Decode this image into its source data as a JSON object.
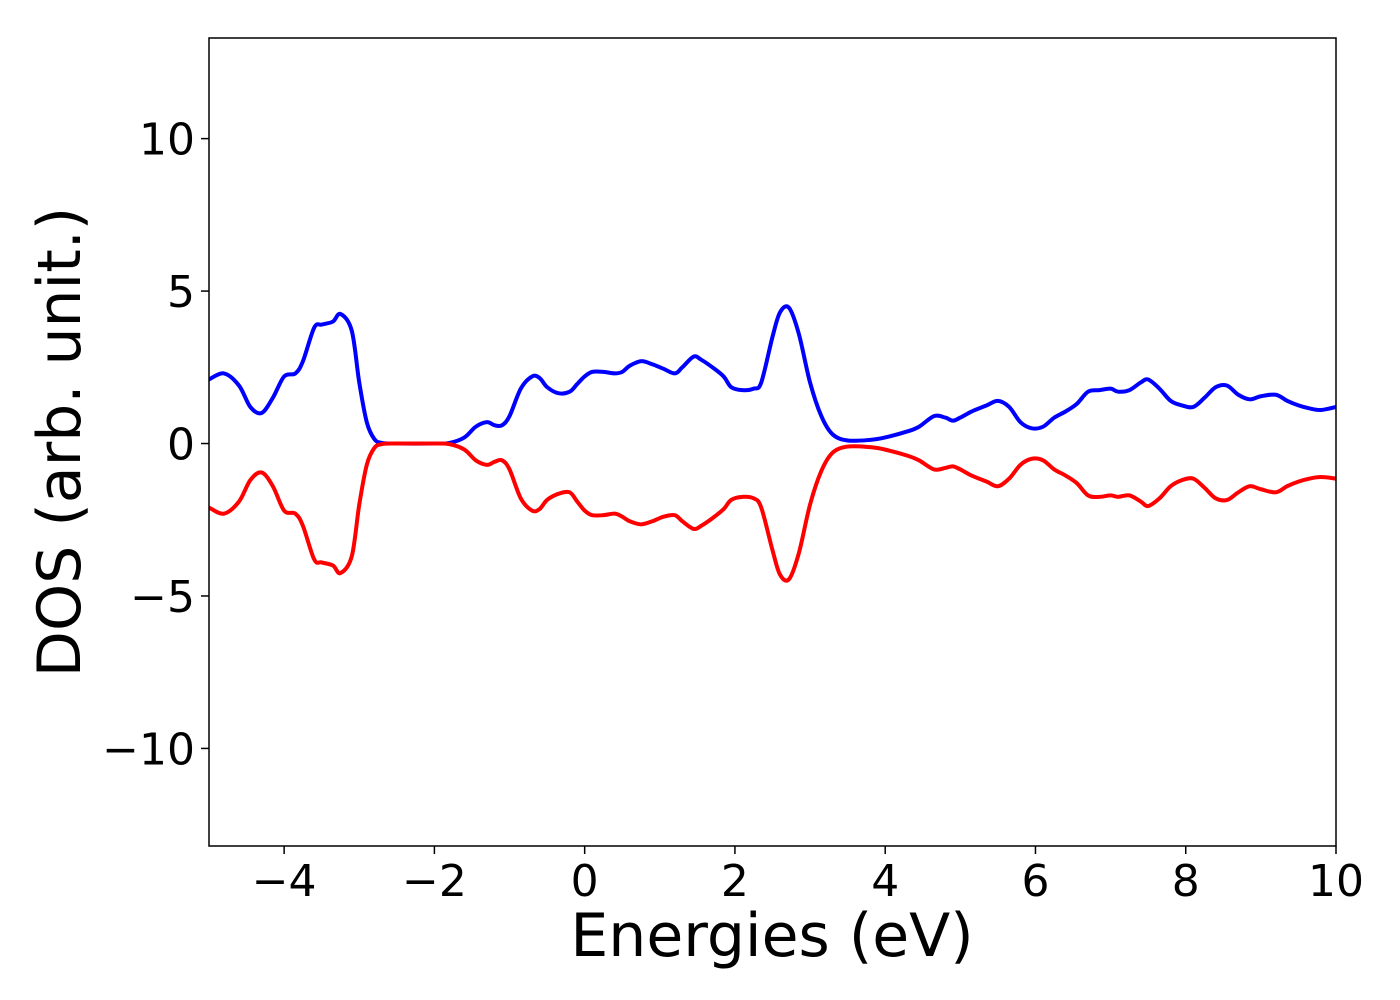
{
  "chart_data": {
    "type": "line",
    "title": "",
    "xlabel": "Energies (eV)",
    "ylabel": "DOS (arb. unit.)",
    "xlim": [
      -5,
      10
    ],
    "ylim": [
      -13.2,
      13.3
    ],
    "grid": false,
    "legend": "none",
    "xticks": [
      -4,
      -2,
      0,
      2,
      4,
      6,
      8,
      10
    ],
    "yticks": [
      -10,
      -5,
      0,
      5,
      10
    ],
    "xtick_labels": [
      "−4",
      "−2",
      "0",
      "2",
      "4",
      "6",
      "8",
      "10"
    ],
    "ytick_labels": [
      "−10",
      "−5",
      "0",
      "5",
      "10"
    ],
    "series": [
      {
        "color": "#0000ff",
        "x": [
          -5.0,
          -4.8,
          -4.6,
          -4.45,
          -4.3,
          -4.15,
          -4.0,
          -3.85,
          -3.75,
          -3.6,
          -3.5,
          -3.35,
          -3.25,
          -3.1,
          -3.0,
          -2.9,
          -2.8,
          -2.7,
          -2.5,
          -2.0,
          -1.8,
          -1.6,
          -1.45,
          -1.3,
          -1.2,
          -1.1,
          -1.0,
          -0.85,
          -0.7,
          -0.6,
          -0.5,
          -0.35,
          -0.2,
          -0.1,
          0.0,
          0.1,
          0.25,
          0.4,
          0.5,
          0.6,
          0.75,
          0.9,
          1.05,
          1.2,
          1.3,
          1.45,
          1.55,
          1.7,
          1.85,
          1.95,
          2.1,
          2.25,
          2.35,
          2.5,
          2.6,
          2.72,
          2.85,
          3.0,
          3.15,
          3.3,
          3.5,
          3.8,
          4.0,
          4.3,
          4.45,
          4.65,
          4.8,
          4.9,
          5.0,
          5.15,
          5.35,
          5.5,
          5.65,
          5.8,
          5.95,
          6.1,
          6.25,
          6.4,
          6.55,
          6.7,
          6.85,
          7.0,
          7.1,
          7.25,
          7.4,
          7.5,
          7.65,
          7.8,
          7.95,
          8.1,
          8.25,
          8.4,
          8.55,
          8.7,
          8.85,
          9.0,
          9.2,
          9.35,
          9.5,
          9.65,
          9.8,
          10.0
        ],
        "y": [
          2.1,
          2.3,
          1.9,
          1.2,
          1.0,
          1.5,
          2.2,
          2.3,
          2.7,
          3.8,
          3.9,
          4.0,
          4.25,
          3.7,
          2.0,
          0.7,
          0.15,
          0.02,
          0.0,
          0.0,
          0.02,
          0.2,
          0.55,
          0.7,
          0.6,
          0.6,
          0.9,
          1.8,
          2.2,
          2.15,
          1.85,
          1.65,
          1.7,
          1.95,
          2.2,
          2.35,
          2.35,
          2.3,
          2.35,
          2.55,
          2.7,
          2.6,
          2.45,
          2.3,
          2.5,
          2.85,
          2.75,
          2.5,
          2.2,
          1.85,
          1.75,
          1.8,
          2.0,
          3.5,
          4.3,
          4.45,
          3.6,
          2.0,
          0.9,
          0.3,
          0.1,
          0.12,
          0.2,
          0.4,
          0.55,
          0.9,
          0.85,
          0.75,
          0.85,
          1.05,
          1.25,
          1.4,
          1.2,
          0.7,
          0.5,
          0.55,
          0.85,
          1.05,
          1.3,
          1.7,
          1.75,
          1.8,
          1.7,
          1.75,
          2.0,
          2.1,
          1.8,
          1.4,
          1.25,
          1.2,
          1.5,
          1.85,
          1.9,
          1.6,
          1.45,
          1.55,
          1.6,
          1.4,
          1.25,
          1.15,
          1.1,
          1.2
        ]
      },
      {
        "color": "#ff0000",
        "x": [
          -5.0,
          -4.8,
          -4.6,
          -4.45,
          -4.3,
          -4.15,
          -4.0,
          -3.85,
          -3.75,
          -3.6,
          -3.5,
          -3.35,
          -3.25,
          -3.1,
          -3.0,
          -2.9,
          -2.8,
          -2.7,
          -2.5,
          -2.0,
          -1.8,
          -1.6,
          -1.45,
          -1.3,
          -1.2,
          -1.1,
          -1.0,
          -0.85,
          -0.7,
          -0.6,
          -0.5,
          -0.35,
          -0.2,
          -0.1,
          0.0,
          0.1,
          0.25,
          0.4,
          0.5,
          0.6,
          0.75,
          0.9,
          1.05,
          1.2,
          1.3,
          1.45,
          1.55,
          1.7,
          1.85,
          1.95,
          2.1,
          2.25,
          2.35,
          2.5,
          2.6,
          2.72,
          2.85,
          3.0,
          3.15,
          3.3,
          3.5,
          3.8,
          4.0,
          4.3,
          4.45,
          4.65,
          4.8,
          4.9,
          5.0,
          5.15,
          5.35,
          5.5,
          5.65,
          5.8,
          5.95,
          6.1,
          6.25,
          6.4,
          6.55,
          6.7,
          6.85,
          7.0,
          7.1,
          7.25,
          7.4,
          7.5,
          7.65,
          7.8,
          7.95,
          8.1,
          8.25,
          8.4,
          8.55,
          8.7,
          8.85,
          9.0,
          9.2,
          9.35,
          9.5,
          9.65,
          9.8,
          10.0
        ],
        "y": [
          -2.1,
          -2.3,
          -1.9,
          -1.2,
          -0.95,
          -1.4,
          -2.2,
          -2.3,
          -2.7,
          -3.8,
          -3.9,
          -4.0,
          -4.25,
          -3.7,
          -2.0,
          -0.7,
          -0.15,
          -0.02,
          0.0,
          0.0,
          -0.02,
          -0.2,
          -0.55,
          -0.7,
          -0.6,
          -0.55,
          -0.85,
          -1.8,
          -2.2,
          -2.15,
          -1.85,
          -1.65,
          -1.6,
          -1.9,
          -2.2,
          -2.35,
          -2.35,
          -2.3,
          -2.4,
          -2.55,
          -2.65,
          -2.55,
          -2.4,
          -2.35,
          -2.55,
          -2.8,
          -2.7,
          -2.45,
          -2.15,
          -1.85,
          -1.75,
          -1.8,
          -2.1,
          -3.5,
          -4.3,
          -4.45,
          -3.6,
          -2.0,
          -0.9,
          -0.3,
          -0.1,
          -0.12,
          -0.2,
          -0.4,
          -0.55,
          -0.85,
          -0.8,
          -0.75,
          -0.85,
          -1.05,
          -1.25,
          -1.4,
          -1.15,
          -0.7,
          -0.5,
          -0.55,
          -0.85,
          -1.05,
          -1.3,
          -1.7,
          -1.75,
          -1.7,
          -1.75,
          -1.7,
          -1.9,
          -2.05,
          -1.8,
          -1.4,
          -1.2,
          -1.15,
          -1.45,
          -1.8,
          -1.85,
          -1.6,
          -1.4,
          -1.5,
          -1.6,
          -1.4,
          -1.25,
          -1.15,
          -1.1,
          -1.15
        ]
      }
    ]
  }
}
